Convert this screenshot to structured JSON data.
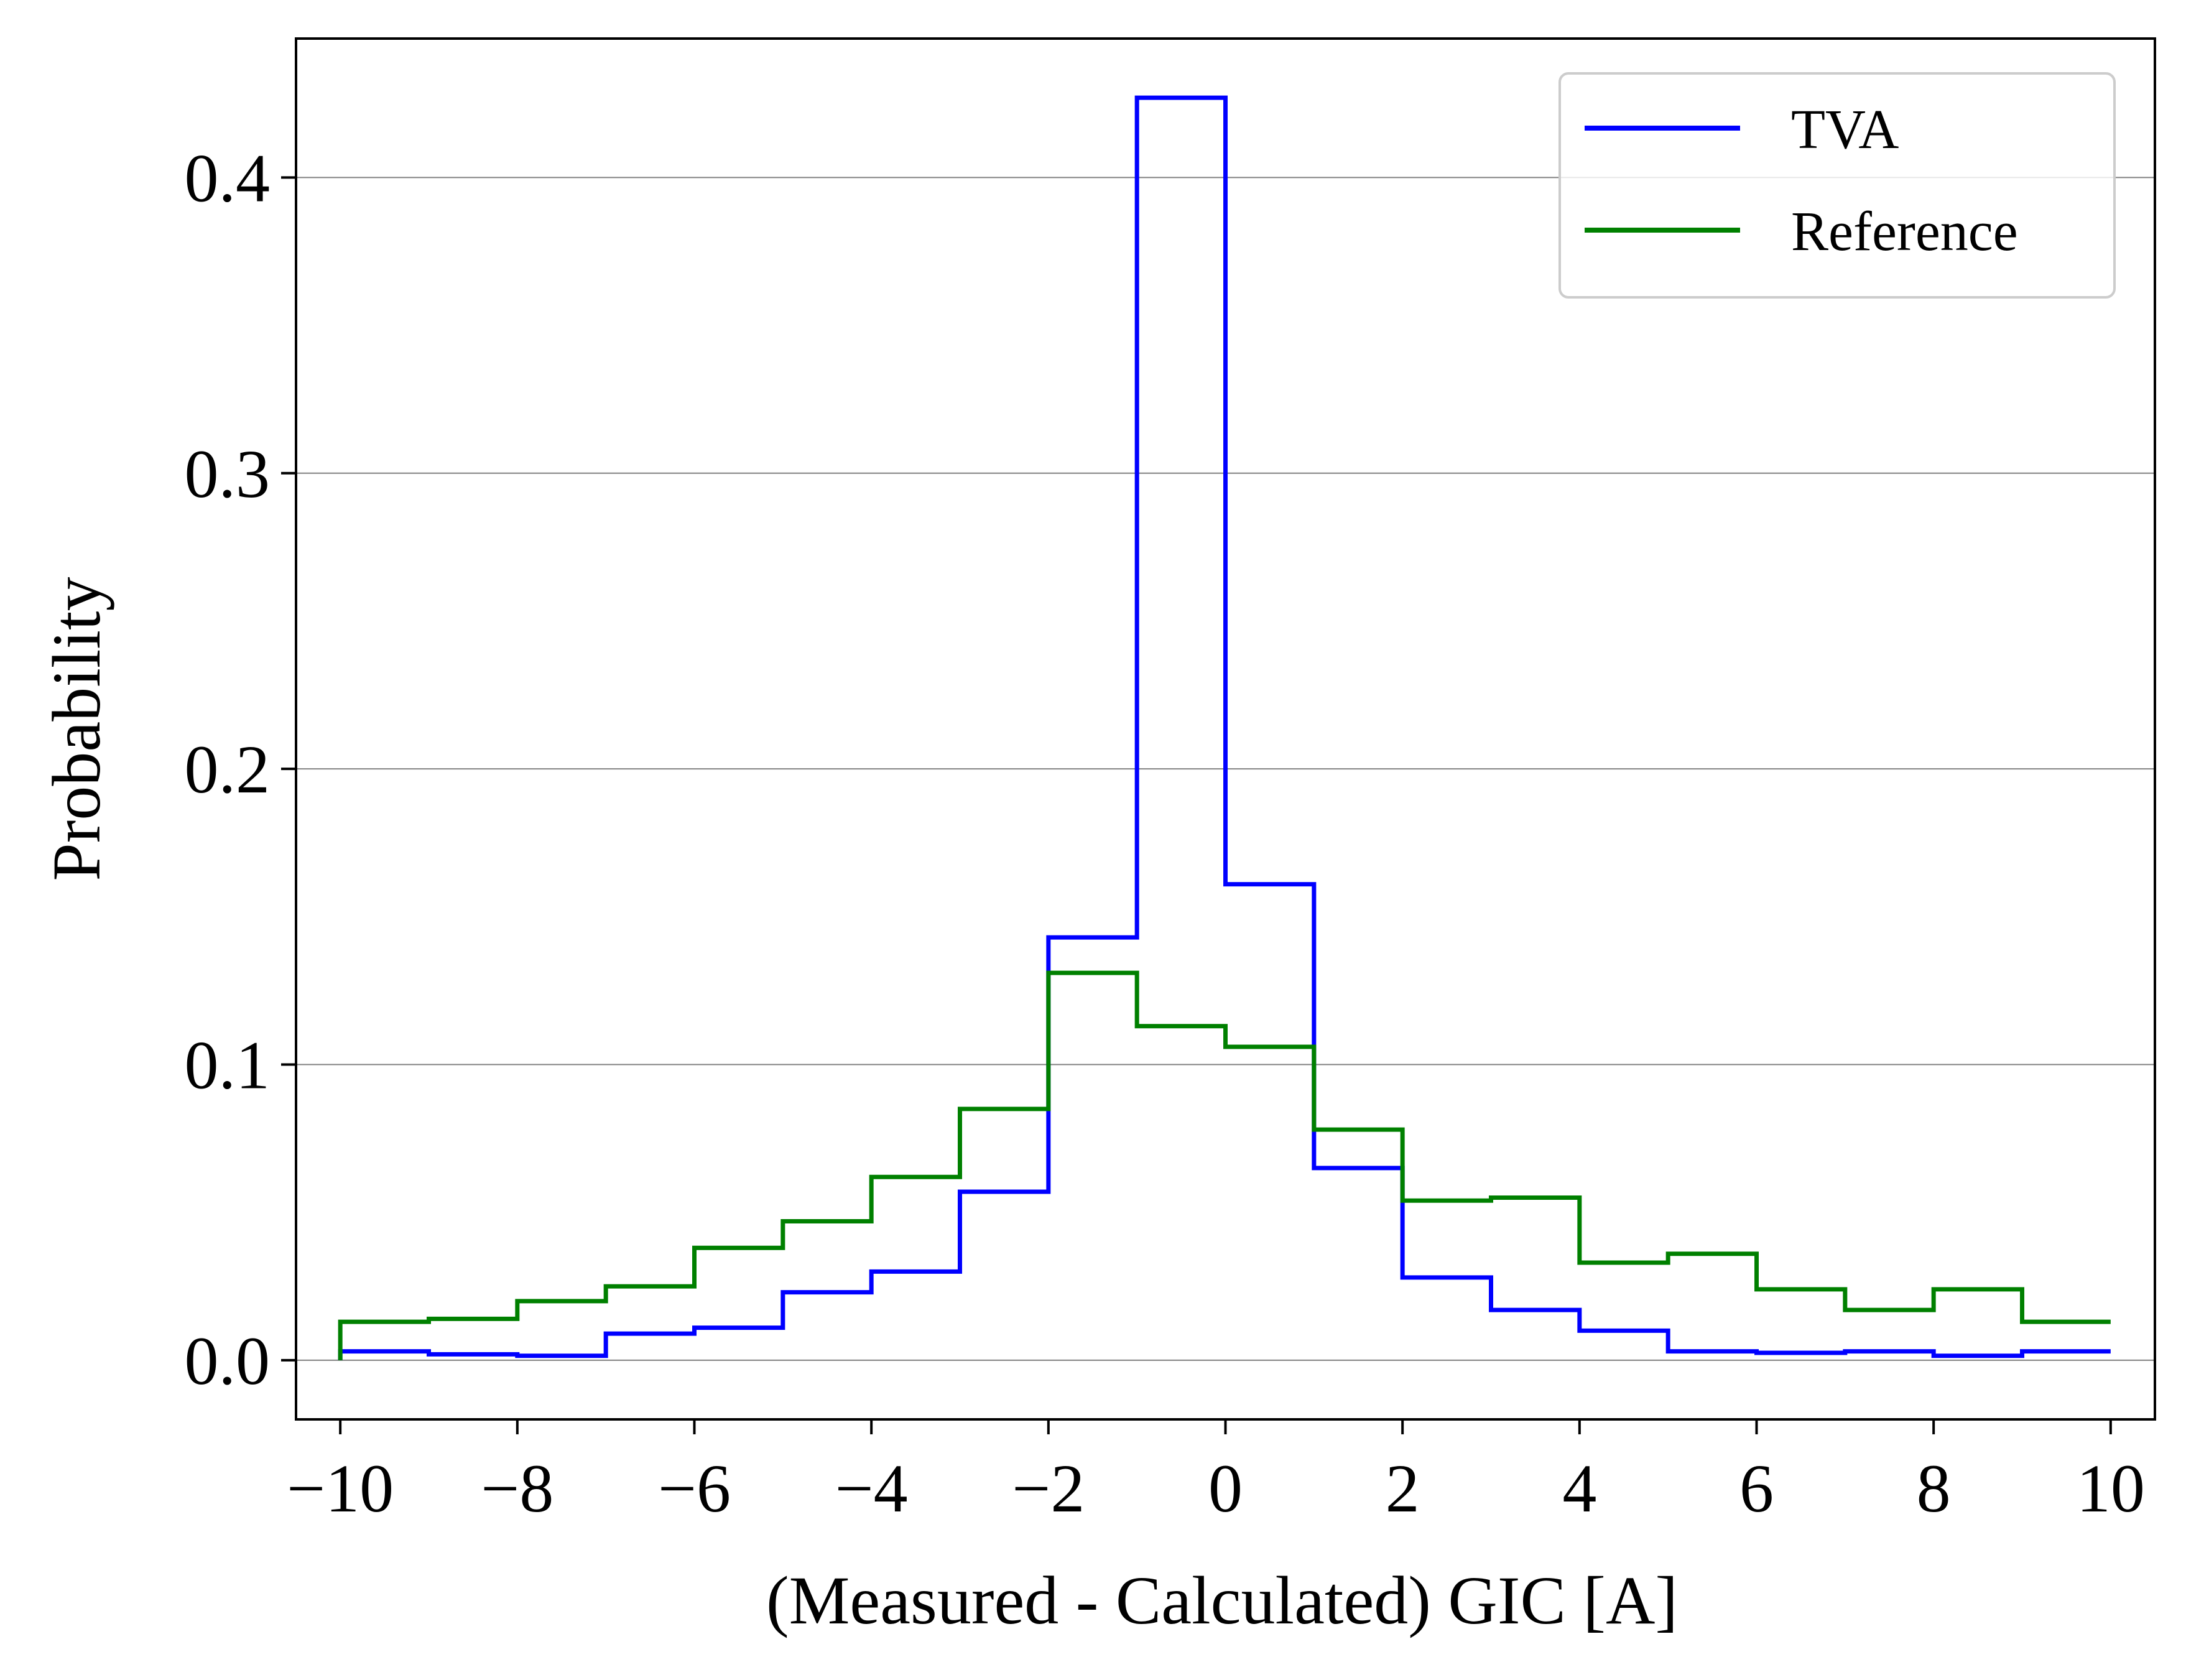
{
  "chart_data": {
    "type": "line",
    "style": "step-histogram",
    "xlabel": "(Measured - Calculated) GIC [A]",
    "ylabel": "Probability",
    "xlim": [
      -10.5,
      10.5
    ],
    "ylim": [
      -0.02,
      0.447
    ],
    "x_ticks": [
      -10,
      -8,
      -6,
      -4,
      -2,
      0,
      2,
      4,
      6,
      8,
      10
    ],
    "x_tick_labels": [
      "−10",
      "−8",
      "−6",
      "−4",
      "−2",
      "0",
      "2",
      "4",
      "6",
      "8",
      "10"
    ],
    "y_ticks": [
      0.0,
      0.1,
      0.2,
      0.3,
      0.4
    ],
    "y_tick_labels": [
      "0.0",
      "0.1",
      "0.2",
      "0.3",
      "0.4"
    ],
    "grid": "horizontal",
    "legend_position": "top-right",
    "bin_edges": [
      -10,
      -9,
      -8,
      -7,
      -6,
      -5,
      -4,
      -3,
      -2,
      -1,
      0,
      1,
      2,
      3,
      4,
      5,
      6,
      7,
      8,
      9,
      10
    ],
    "series": [
      {
        "name": "TVA",
        "color": "#0000ff",
        "values": [
          0.003,
          0.002,
          0.0015,
          0.009,
          0.011,
          0.023,
          0.03,
          0.057,
          0.143,
          0.427,
          0.161,
          0.065,
          0.028,
          0.017,
          0.01,
          0.003,
          0.0025,
          0.003,
          0.0015,
          0.003
        ]
      },
      {
        "name": "Reference",
        "color": "#008000",
        "values": [
          0.013,
          0.014,
          0.02,
          0.025,
          0.038,
          0.047,
          0.062,
          0.085,
          0.131,
          0.113,
          0.106,
          0.078,
          0.054,
          0.055,
          0.033,
          0.036,
          0.024,
          0.017,
          0.024,
          0.013
        ]
      }
    ]
  }
}
